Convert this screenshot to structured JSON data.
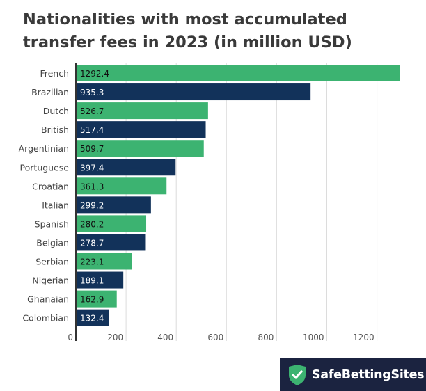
{
  "chart_data": {
    "type": "bar",
    "orientation": "horizontal",
    "title": "Nationalities with most accumulated transfer fees in 2023 (in million USD)",
    "categories": [
      "French",
      "Brazilian",
      "Dutch",
      "British",
      "Argentinian",
      "Portuguese",
      "Croatian",
      "Italian",
      "Spanish",
      "Belgian",
      "Serbian",
      "Nigerian",
      "Ghanaian",
      "Colombian"
    ],
    "values": [
      1292.4,
      935.3,
      526.7,
      517.4,
      509.7,
      397.4,
      361.3,
      299.2,
      280.2,
      278.7,
      223.1,
      189.1,
      162.9,
      132.4
    ],
    "value_labels": [
      "1292.4",
      "935.3",
      "526.7",
      "517.4",
      "509.7",
      "397.4",
      "361.3",
      "299.2",
      "280.2",
      "278.7",
      "223.1",
      "189.1",
      "162.9",
      "132.4"
    ],
    "xticks": [
      "0",
      "200",
      "400",
      "600",
      "800",
      "1000",
      "1200"
    ],
    "xlim": [
      0,
      1300
    ],
    "grid": true,
    "colors": [
      "#3cb371",
      "#12325a"
    ]
  },
  "brand": {
    "name": "SafeBettingSites",
    "icon": "shield-check-icon",
    "green": "#3cb371"
  }
}
